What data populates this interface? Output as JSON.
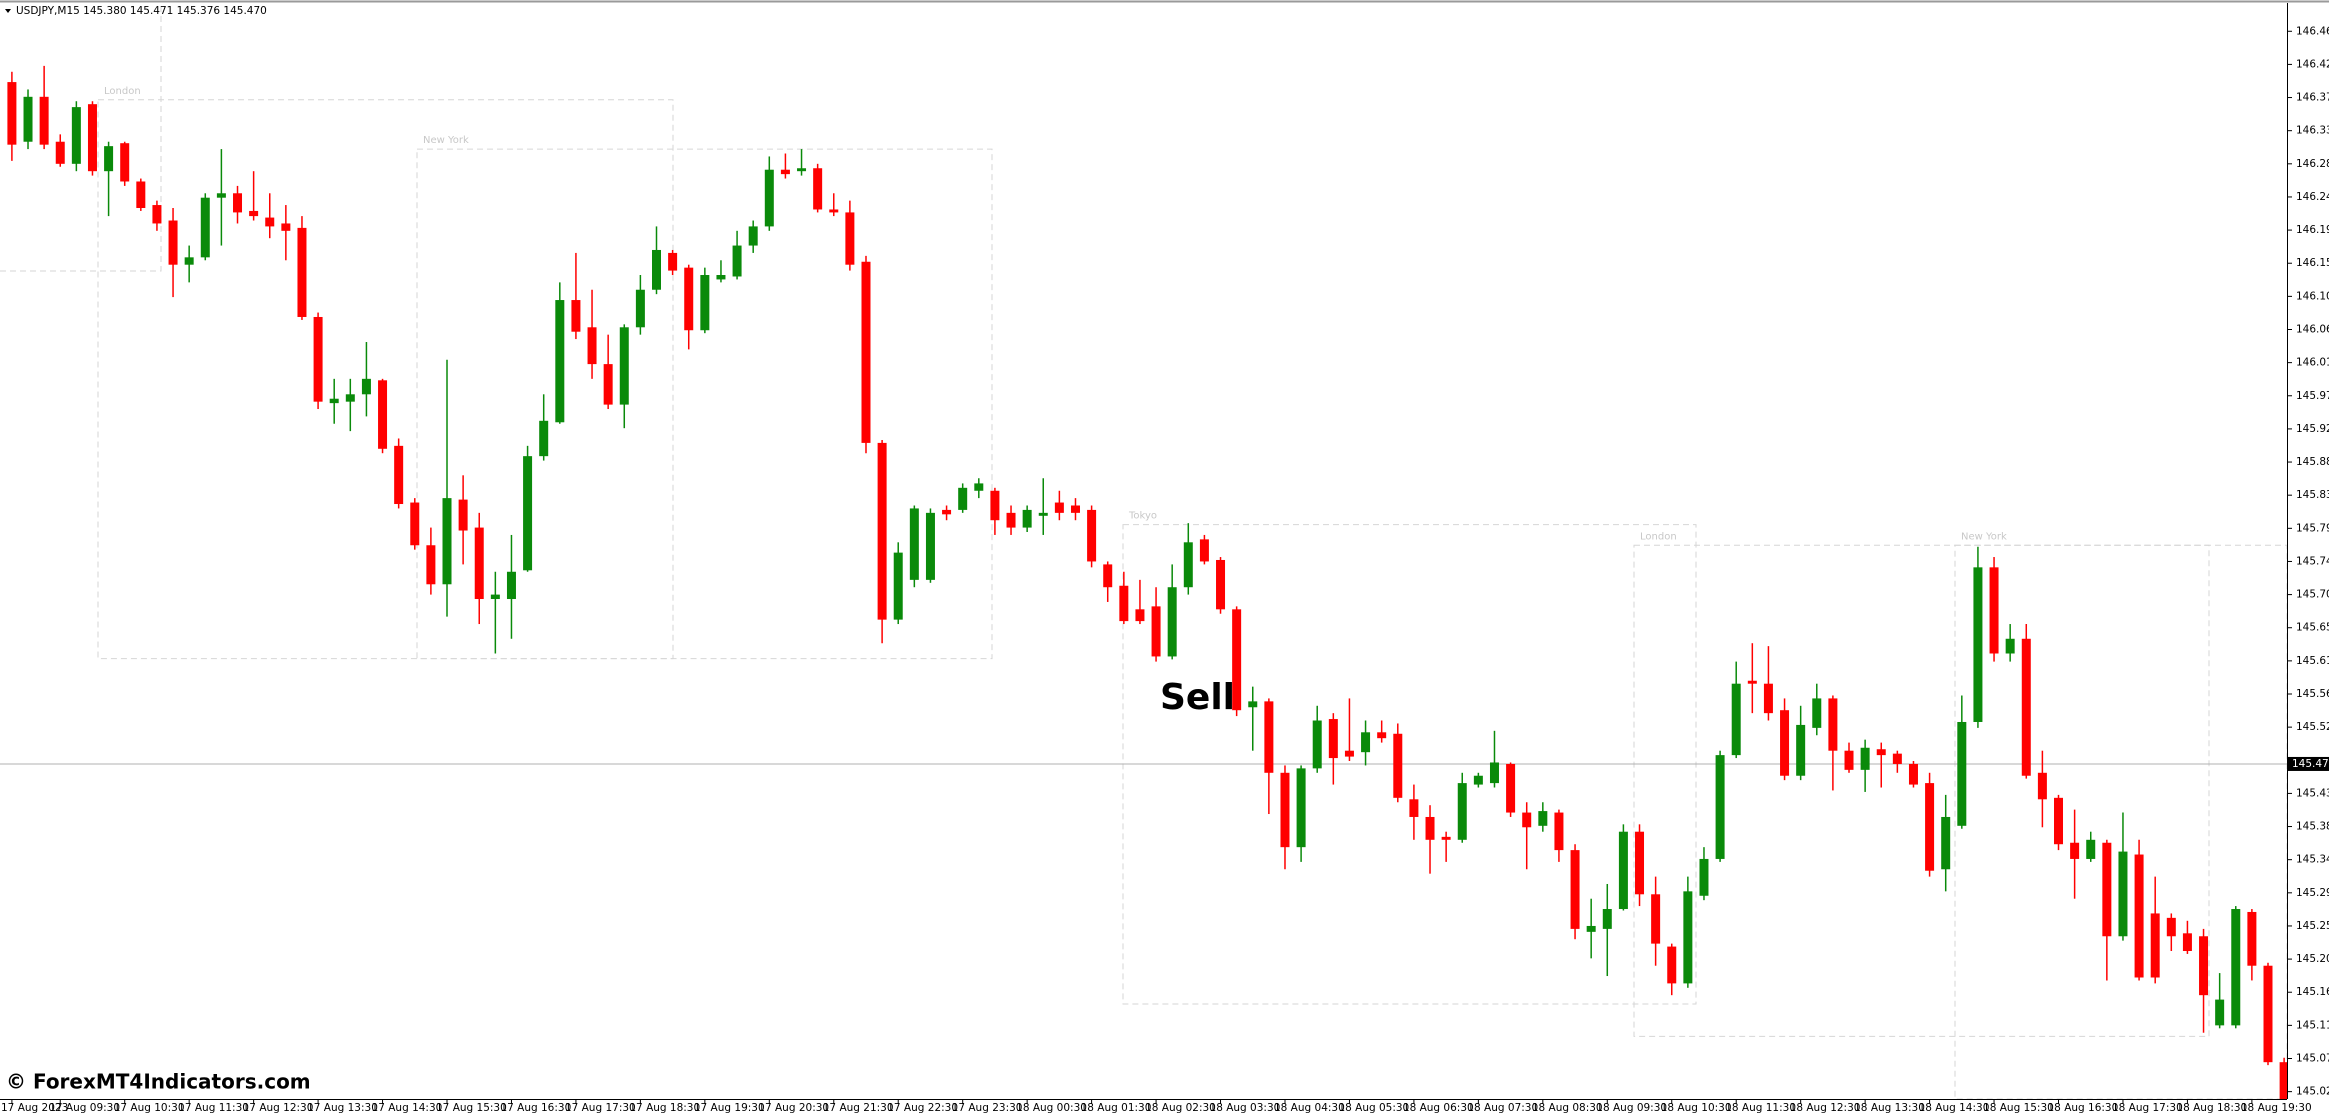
{
  "chart_data": {
    "type": "candlestick",
    "title": "USDJPY,M15  145.380 145.471 145.376 145.470",
    "annotation": "Sell",
    "watermark": "© ForexMT4Indicators.com",
    "up_color": "#0a8a0a",
    "down_color": "#ff0000",
    "categories": [
      "17 Aug 2023",
      null,
      null,
      "17 Aug 09:30",
      null,
      null,
      null,
      "17 Aug 10:30",
      null,
      null,
      null,
      "17 Aug 11:30",
      null,
      null,
      null,
      "17 Aug 12:30",
      null,
      null,
      null,
      "17 Aug 13:30",
      null,
      null,
      null,
      "17 Aug 14:30",
      null,
      null,
      null,
      "17 Aug 15:30",
      null,
      null,
      null,
      "17 Aug 16:30",
      null,
      null,
      null,
      "17 Aug 17:30",
      null,
      null,
      null,
      "17 Aug 18:30",
      null,
      null,
      null,
      "17 Aug 19:30",
      null,
      null,
      null,
      "17 Aug 20:30",
      null,
      null,
      null,
      "17 Aug 21:30",
      null,
      null,
      null,
      "17 Aug 22:30",
      null,
      null,
      null,
      "17 Aug 23:30",
      null,
      null,
      null,
      "18 Aug 00:30",
      null,
      null,
      null,
      "18 Aug 01:30",
      null,
      null,
      null,
      "18 Aug 02:30",
      null,
      null,
      null,
      "18 Aug 03:30",
      null,
      null,
      null,
      "18 Aug 04:30",
      null,
      null,
      null,
      "18 Aug 05:30",
      null,
      null,
      null,
      "18 Aug 06:30",
      null,
      null,
      null,
      "18 Aug 07:30",
      null,
      null,
      null,
      "18 Aug 08:30",
      null,
      null,
      null,
      "18 Aug 09:30",
      null,
      null,
      null,
      "18 Aug 10:30",
      null,
      null,
      null,
      "18 Aug 11:30",
      null,
      null,
      null,
      "18 Aug 12:30",
      null,
      null,
      null,
      "18 Aug 13:30",
      null,
      null,
      null,
      "18 Aug 14:30",
      null,
      null,
      null,
      "18 Aug 15:30",
      null,
      null,
      null,
      "18 Aug 16:30",
      null,
      null,
      null,
      "18 Aug 17:30",
      null,
      null,
      null,
      "18 Aug 18:30",
      null,
      null,
      null,
      "18 Aug 19:30",
      null,
      null
    ],
    "open": [
      146.396,
      146.315,
      146.376,
      146.315,
      146.285,
      146.366,
      146.275,
      146.313,
      146.261,
      146.229,
      146.208,
      146.148,
      146.158,
      146.239,
      146.245,
      146.221,
      146.212,
      146.204,
      146.198,
      146.077,
      145.96,
      145.962,
      145.972,
      145.991,
      145.902,
      145.825,
      145.767,
      145.714,
      145.829,
      145.791,
      145.694,
      145.694,
      145.733,
      145.888,
      145.934,
      146.1,
      146.063,
      146.013,
      145.958,
      146.063,
      146.114,
      146.164,
      146.144,
      146.059,
      146.128,
      146.132,
      146.174,
      146.2,
      146.277,
      146.275,
      146.279,
      146.223,
      146.219,
      146.152,
      145.906,
      145.666,
      145.72,
      145.72,
      145.815,
      145.815,
      145.841,
      145.841,
      145.811,
      145.791,
      145.807,
      145.825,
      145.821,
      145.815,
      145.741,
      145.712,
      145.68,
      145.684,
      145.616,
      145.71,
      145.775,
      145.747,
      145.68,
      145.547,
      145.555,
      145.458,
      145.357,
      145.464,
      145.531,
      145.488,
      145.486,
      145.513,
      145.511,
      145.422,
      145.398,
      145.371,
      145.367,
      145.442,
      145.444,
      145.47,
      145.404,
      145.386,
      145.404,
      145.353,
      145.242,
      145.246,
      145.273,
      145.378,
      145.293,
      145.222,
      145.172,
      145.291,
      145.341,
      145.482,
      145.583,
      145.579,
      145.543,
      145.454,
      145.519,
      145.559,
      145.488,
      145.462,
      145.49,
      145.484,
      145.47,
      145.444,
      145.327,
      145.386,
      145.527,
      145.737,
      145.62,
      145.64,
      145.458,
      145.424,
      145.363,
      145.341,
      145.363,
      145.236,
      145.347,
      145.267,
      145.261,
      145.24,
      145.236,
      145.115,
      145.115,
      145.269,
      145.196,
      145.065
    ],
    "high": [
      146.41,
      146.386,
      146.418,
      146.325,
      146.37,
      146.37,
      146.315,
      146.315,
      146.265,
      146.235,
      146.225,
      146.174,
      146.245,
      146.305,
      146.255,
      146.275,
      146.245,
      146.229,
      146.214,
      146.083,
      145.993,
      145.993,
      146.043,
      145.993,
      145.912,
      145.831,
      145.791,
      146.019,
      145.862,
      145.811,
      145.731,
      145.781,
      145.902,
      145.972,
      146.124,
      146.164,
      146.114,
      146.053,
      146.067,
      146.134,
      146.2,
      146.168,
      146.148,
      146.144,
      146.154,
      146.194,
      146.208,
      146.295,
      146.299,
      146.305,
      146.285,
      146.245,
      146.235,
      146.16,
      145.91,
      145.771,
      145.821,
      145.817,
      145.821,
      145.851,
      145.858,
      145.845,
      145.821,
      145.821,
      145.858,
      145.841,
      145.831,
      145.821,
      145.745,
      145.731,
      145.72,
      145.71,
      145.741,
      145.797,
      145.781,
      145.751,
      145.684,
      145.575,
      145.559,
      145.468,
      145.468,
      145.549,
      145.539,
      145.559,
      145.529,
      145.529,
      145.525,
      145.442,
      145.414,
      145.378,
      145.458,
      145.458,
      145.515,
      145.472,
      145.418,
      145.418,
      145.408,
      145.361,
      145.287,
      145.307,
      145.388,
      145.388,
      145.317,
      145.226,
      145.317,
      145.357,
      145.488,
      145.609,
      145.634,
      145.63,
      145.559,
      145.549,
      145.579,
      145.563,
      145.499,
      145.503,
      145.499,
      145.488,
      145.474,
      145.458,
      145.428,
      145.563,
      145.765,
      145.751,
      145.66,
      145.66,
      145.488,
      145.428,
      145.408,
      145.378,
      145.367,
      145.404,
      145.367,
      145.317,
      145.267,
      145.257,
      145.246,
      145.186,
      145.277,
      145.273,
      145.2,
      145.071
    ],
    "low": [
      146.289,
      146.305,
      146.305,
      146.281,
      146.275,
      146.269,
      146.214,
      146.255,
      146.221,
      146.194,
      146.104,
      146.124,
      146.154,
      146.174,
      146.204,
      146.208,
      146.184,
      146.154,
      146.073,
      145.952,
      145.932,
      145.922,
      145.942,
      145.892,
      145.817,
      145.761,
      145.7,
      145.67,
      145.741,
      145.66,
      145.62,
      145.64,
      145.731,
      145.882,
      145.932,
      146.047,
      145.993,
      145.952,
      145.926,
      146.053,
      146.108,
      146.134,
      146.033,
      146.055,
      146.124,
      146.128,
      146.164,
      146.194,
      146.265,
      146.269,
      146.219,
      146.214,
      146.14,
      145.892,
      145.634,
      145.66,
      145.71,
      145.716,
      145.801,
      145.811,
      145.831,
      145.781,
      145.781,
      145.785,
      145.781,
      145.801,
      145.801,
      145.737,
      145.69,
      145.66,
      145.66,
      145.609,
      145.612,
      145.7,
      145.741,
      145.674,
      145.535,
      145.488,
      145.402,
      145.327,
      145.337,
      145.458,
      145.442,
      145.474,
      145.468,
      145.499,
      145.418,
      145.367,
      145.321,
      145.337,
      145.363,
      145.438,
      145.438,
      145.398,
      145.327,
      145.378,
      145.337,
      145.232,
      145.206,
      145.182,
      145.271,
      145.277,
      145.196,
      145.156,
      145.166,
      145.285,
      145.337,
      145.478,
      145.539,
      145.529,
      145.448,
      145.448,
      145.509,
      145.434,
      145.458,
      145.432,
      145.438,
      145.458,
      145.438,
      145.317,
      145.297,
      145.382,
      145.519,
      145.609,
      145.609,
      145.45,
      145.384,
      145.353,
      145.287,
      145.337,
      145.176,
      145.23,
      145.176,
      145.172,
      145.216,
      145.212,
      145.105,
      145.111,
      145.111,
      145.176,
      145.061,
      145.004
    ],
    "close": [
      146.311,
      146.376,
      146.311,
      146.285,
      146.362,
      146.275,
      146.309,
      146.261,
      146.225,
      146.204,
      146.148,
      146.158,
      146.239,
      146.245,
      146.219,
      146.214,
      146.2,
      146.194,
      146.077,
      145.962,
      145.966,
      145.972,
      145.993,
      145.898,
      145.823,
      145.767,
      145.714,
      145.831,
      145.787,
      145.694,
      145.7,
      145.731,
      145.888,
      145.936,
      146.1,
      146.057,
      146.013,
      145.958,
      146.063,
      146.114,
      146.168,
      146.14,
      146.059,
      146.134,
      146.134,
      146.174,
      146.2,
      146.277,
      146.271,
      146.279,
      146.223,
      146.219,
      146.148,
      145.906,
      145.666,
      145.757,
      145.817,
      145.811,
      145.809,
      145.845,
      145.851,
      145.801,
      145.791,
      145.815,
      145.811,
      145.811,
      145.811,
      145.745,
      145.71,
      145.664,
      145.664,
      145.616,
      145.71,
      145.771,
      145.745,
      145.68,
      145.543,
      145.555,
      145.458,
      145.357,
      145.464,
      145.529,
      145.478,
      145.48,
      145.513,
      145.505,
      145.424,
      145.398,
      145.367,
      145.367,
      145.444,
      145.454,
      145.472,
      145.404,
      145.384,
      145.406,
      145.353,
      145.246,
      145.25,
      145.273,
      145.378,
      145.293,
      145.226,
      145.172,
      145.297,
      145.341,
      145.482,
      145.579,
      145.579,
      145.539,
      145.454,
      145.523,
      145.559,
      145.488,
      145.462,
      145.492,
      145.482,
      145.47,
      145.442,
      145.325,
      145.398,
      145.527,
      145.737,
      145.62,
      145.64,
      145.454,
      145.422,
      145.361,
      145.341,
      145.367,
      145.236,
      145.351,
      145.18,
      145.18,
      145.236,
      145.216,
      145.156,
      145.15,
      145.273,
      145.196,
      145.065,
      145.014
    ],
    "ylim": [
      145.015,
      146.5
    ],
    "yticks": [
      146.465,
      {
        "value": 146.42,
        "label": "146.420"
      },
      146.375,
      {
        "value": 146.33,
        "label": "146.330"
      },
      146.285,
      {
        "value": 146.24,
        "label": "146.240"
      },
      146.195,
      {
        "value": 146.15,
        "label": "146.150"
      },
      146.105,
      {
        "value": 146.06,
        "label": "146.060"
      },
      146.015,
      {
        "value": 145.97,
        "label": "145.970"
      },
      145.925,
      {
        "value": 145.88,
        "label": "145.880"
      },
      145.835,
      {
        "value": 145.79,
        "label": "145.790"
      },
      145.745,
      {
        "value": 145.7,
        "label": "145.700"
      },
      145.655,
      {
        "value": 145.61,
        "label": "145.610"
      },
      145.565,
      {
        "value": 145.52,
        "label": "145.520"
      },
      {
        "value": 145.43,
        "label": "145.430"
      },
      145.385,
      {
        "value": 145.34,
        "label": "145.340"
      },
      145.295,
      {
        "value": 145.25,
        "label": "145.250"
      },
      145.205,
      {
        "value": 145.16,
        "label": "145.160"
      },
      145.115,
      {
        "value": 145.07,
        "label": "145.070"
      },
      145.025
    ],
    "current_price": {
      "value": 145.47,
      "label": "145.470"
    },
    "sessions": [
      {
        "label": "London",
        "high": 146.372,
        "low": 145.613
      },
      {
        "label": "New York",
        "high": 146.305,
        "low": 145.613
      },
      {
        "label": "Tokyo",
        "high": 145.795,
        "low": 145.144
      },
      {
        "label": "London",
        "high": 145.767,
        "low": 145.1
      },
      {
        "label": "New York",
        "high": 145.767
      }
    ]
  }
}
